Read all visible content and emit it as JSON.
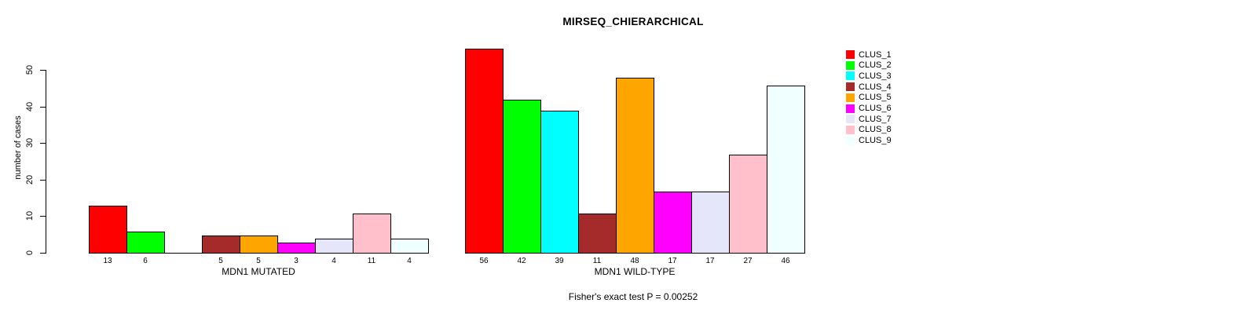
{
  "title": "MIRSEQ_CHIERARCHICAL",
  "chart_data": {
    "type": "bar",
    "title": "MIRSEQ_CHIERARCHICAL",
    "ylabel": "number of cases",
    "ylim": [
      0,
      50
    ],
    "yticks": [
      0,
      10,
      20,
      30,
      40,
      50
    ],
    "grid": false,
    "legend_position": "right",
    "clusters": [
      {
        "name": "CLUS_1",
        "color": "#FF0000"
      },
      {
        "name": "CLUS_2",
        "color": "#00FF00"
      },
      {
        "name": "CLUS_3",
        "color": "#00FFFF"
      },
      {
        "name": "CLUS_4",
        "color": "#A52A2A"
      },
      {
        "name": "CLUS_5",
        "color": "#FFA500"
      },
      {
        "name": "CLUS_6",
        "color": "#FF00FF"
      },
      {
        "name": "CLUS_7",
        "color": "#E6E6FA"
      },
      {
        "name": "CLUS_8",
        "color": "#FFC0CB"
      },
      {
        "name": "CLUS_9",
        "color": "#F0FFFF"
      }
    ],
    "groups": [
      {
        "label": "MDN1 MUTATED",
        "values": [
          13,
          6,
          0,
          5,
          5,
          3,
          4,
          11,
          4
        ],
        "value_labels": [
          "13",
          "6",
          "",
          "5",
          "5",
          "3",
          "4",
          "11",
          "4"
        ]
      },
      {
        "label": "MDN1 WILD-TYPE",
        "values": [
          56,
          42,
          39,
          11,
          48,
          17,
          17,
          27,
          46
        ],
        "value_labels": [
          "56",
          "42",
          "39",
          "11",
          "48",
          "17",
          "17",
          "27",
          "46"
        ]
      }
    ],
    "annotation": "Fisher's exact test P = 0.00252"
  }
}
